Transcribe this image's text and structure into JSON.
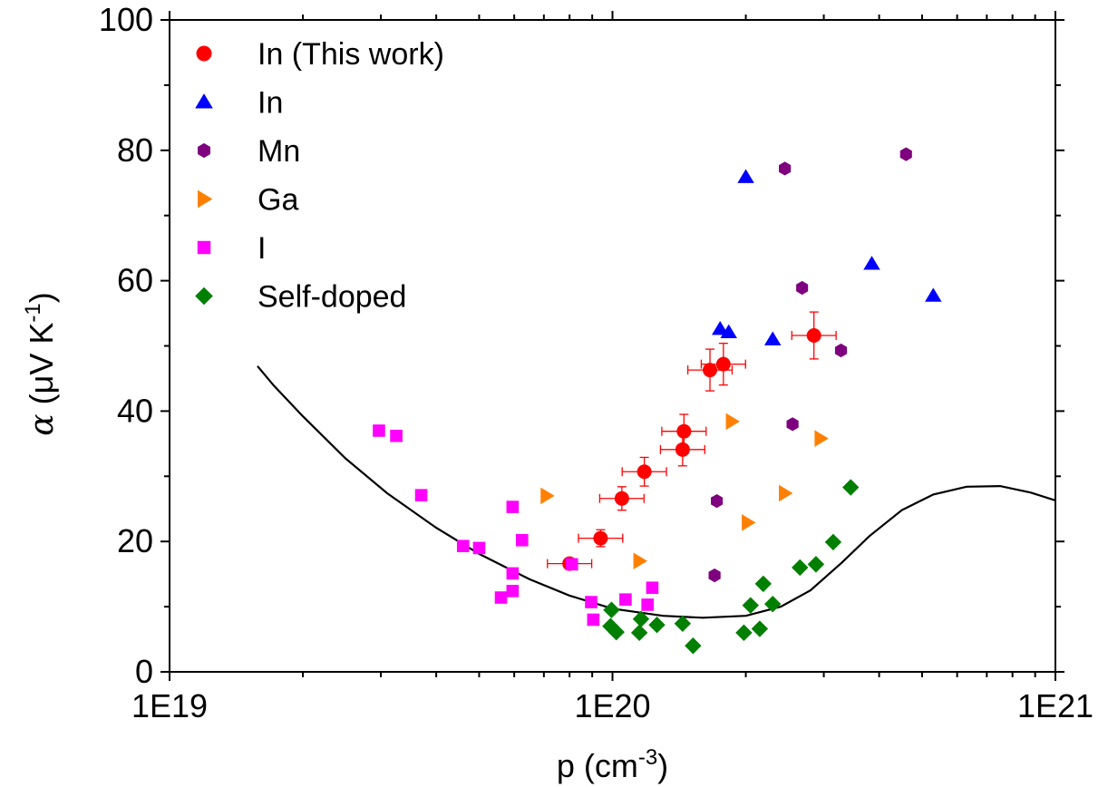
{
  "chart_data": {
    "type": "scatter",
    "title": "",
    "xlabel": "p (cm",
    "xlabel_sup": "-3",
    "xlabel_end": ")",
    "ylabel_symbol": "α",
    "ylabel": " (μV K",
    "ylabel_sup": "-1",
    "ylabel_end": ")",
    "xscale": "log",
    "xlim": [
      1e+19,
      1e+21
    ],
    "ylim": [
      0,
      100
    ],
    "x_ticks": [
      1e+19,
      1e+20,
      1e+21
    ],
    "x_tick_labels": [
      "1E19",
      "1E20",
      "1E21"
    ],
    "y_ticks": [
      0,
      20,
      40,
      60,
      80,
      100
    ],
    "y_tick_labels": [
      "0",
      "20",
      "40",
      "60",
      "80",
      "100"
    ],
    "legend_position": "top-left",
    "series": [
      {
        "name": "In (This work)",
        "marker": "circle",
        "color": "#ff0000",
        "points": [
          {
            "x": 8e+19,
            "y": 16.6,
            "xerr": 0.05,
            "yerr": 0.8
          },
          {
            "x": 9.4e+19,
            "y": 20.5,
            "xerr": 0.05,
            "yerr": 1.3
          },
          {
            "x": 1.05e+20,
            "y": 26.6,
            "xerr": 0.05,
            "yerr": 1.8
          },
          {
            "x": 1.18e+20,
            "y": 30.7,
            "xerr": 0.05,
            "yerr": 2.2
          },
          {
            "x": 1.44e+20,
            "y": 34.1,
            "xerr": 0.05,
            "yerr": 2.5
          },
          {
            "x": 1.45e+20,
            "y": 36.9,
            "xerr": 0.05,
            "yerr": 2.6
          },
          {
            "x": 1.66e+20,
            "y": 46.3,
            "xerr": 0.05,
            "yerr": 3.2
          },
          {
            "x": 1.78e+20,
            "y": 47.2,
            "xerr": 0.05,
            "yerr": 3.2
          },
          {
            "x": 2.85e+20,
            "y": 51.6,
            "xerr": 0.05,
            "yerr": 3.6
          }
        ]
      },
      {
        "name": "In",
        "marker": "triangle-up",
        "color": "#0000ff",
        "points": [
          {
            "x": 1.75e+20,
            "y": 52.6
          },
          {
            "x": 1.83e+20,
            "y": 52.1
          },
          {
            "x": 2e+20,
            "y": 75.9
          },
          {
            "x": 2.3e+20,
            "y": 51.0
          },
          {
            "x": 3.85e+20,
            "y": 62.6
          },
          {
            "x": 5.3e+20,
            "y": 57.7
          }
        ]
      },
      {
        "name": "Mn",
        "marker": "hexagon",
        "color": "#7f007f",
        "points": [
          {
            "x": 1.7e+20,
            "y": 14.8
          },
          {
            "x": 1.72e+20,
            "y": 26.2
          },
          {
            "x": 2.45e+20,
            "y": 77.2
          },
          {
            "x": 2.55e+20,
            "y": 38.0
          },
          {
            "x": 2.68e+20,
            "y": 58.9
          },
          {
            "x": 3.28e+20,
            "y": 49.3
          },
          {
            "x": 4.6e+20,
            "y": 79.4
          }
        ]
      },
      {
        "name": "Ga",
        "marker": "triangle-right",
        "color": "#ff8000",
        "points": [
          {
            "x": 7.1e+19,
            "y": 27.0
          },
          {
            "x": 1.15e+20,
            "y": 17.0
          },
          {
            "x": 1.86e+20,
            "y": 38.4
          },
          {
            "x": 2.02e+20,
            "y": 22.9
          },
          {
            "x": 2.45e+20,
            "y": 27.4
          },
          {
            "x": 2.95e+20,
            "y": 35.8
          }
        ]
      },
      {
        "name": "I",
        "marker": "square",
        "color": "#ff00ff",
        "points": [
          {
            "x": 2.97e+19,
            "y": 37.0
          },
          {
            "x": 3.25e+19,
            "y": 36.2
          },
          {
            "x": 3.7e+19,
            "y": 27.1
          },
          {
            "x": 4.6e+19,
            "y": 19.3
          },
          {
            "x": 5e+19,
            "y": 19.0
          },
          {
            "x": 5.6e+19,
            "y": 11.4
          },
          {
            "x": 5.95e+19,
            "y": 12.4
          },
          {
            "x": 5.95e+19,
            "y": 15.1
          },
          {
            "x": 5.95e+19,
            "y": 25.3
          },
          {
            "x": 6.25e+19,
            "y": 20.2
          },
          {
            "x": 8.1e+19,
            "y": 16.5
          },
          {
            "x": 8.95e+19,
            "y": 10.7
          },
          {
            "x": 9.05e+19,
            "y": 8.0
          },
          {
            "x": 1.07e+20,
            "y": 11.1
          },
          {
            "x": 1.2e+20,
            "y": 10.3
          },
          {
            "x": 1.23e+20,
            "y": 12.9
          }
        ]
      },
      {
        "name": "Self-doped",
        "marker": "diamond",
        "color": "#007f00",
        "points": [
          {
            "x": 9.9e+19,
            "y": 7.0
          },
          {
            "x": 9.95e+19,
            "y": 9.5
          },
          {
            "x": 1.02e+20,
            "y": 6.1
          },
          {
            "x": 1.15e+20,
            "y": 6.0
          },
          {
            "x": 1.16e+20,
            "y": 8.1
          },
          {
            "x": 1.26e+20,
            "y": 7.2
          },
          {
            "x": 1.44e+20,
            "y": 7.4
          },
          {
            "x": 1.52e+20,
            "y": 4.0
          },
          {
            "x": 1.98e+20,
            "y": 6.0
          },
          {
            "x": 2.05e+20,
            "y": 10.2
          },
          {
            "x": 2.15e+20,
            "y": 6.6
          },
          {
            "x": 2.19e+20,
            "y": 13.5
          },
          {
            "x": 2.3e+20,
            "y": 10.4
          },
          {
            "x": 2.65e+20,
            "y": 16.0
          },
          {
            "x": 2.88e+20,
            "y": 16.5
          },
          {
            "x": 3.15e+20,
            "y": 19.9
          },
          {
            "x": 3.45e+20,
            "y": 28.3
          }
        ]
      }
    ],
    "model_curve": {
      "color": "#000000",
      "points": [
        [
          1.58e+19,
          46.9
        ],
        [
          1.72e+19,
          43.9
        ],
        [
          2e+19,
          39.2
        ],
        [
          2.5e+19,
          32.7
        ],
        [
          3.1e+19,
          27.4
        ],
        [
          4e+19,
          22.1
        ],
        [
          5e+19,
          18.1
        ],
        [
          6.5e+19,
          14.2
        ],
        [
          8e+19,
          11.7
        ],
        [
          1e+20,
          9.7
        ],
        [
          1.3e+20,
          8.6
        ],
        [
          1.6e+20,
          8.3
        ],
        [
          2e+20,
          8.6
        ],
        [
          2.4e+20,
          10.0
        ],
        [
          2.8e+20,
          12.5
        ],
        [
          3.3e+20,
          16.8
        ],
        [
          3.8e+20,
          20.8
        ],
        [
          4.5e+20,
          24.8
        ],
        [
          5.3e+20,
          27.2
        ],
        [
          6.3e+20,
          28.4
        ],
        [
          7.5e+20,
          28.5
        ],
        [
          8.8e+20,
          27.5
        ],
        [
          1e+21,
          26.3
        ]
      ]
    }
  }
}
